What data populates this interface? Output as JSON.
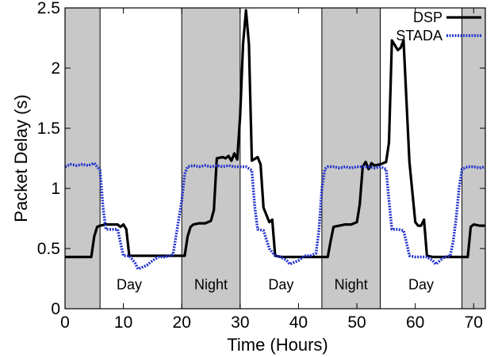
{
  "chart_data": {
    "type": "line",
    "xlabel": "Time (Hours)",
    "ylabel": "Packet Delay (s)",
    "xlim": [
      0,
      72
    ],
    "ylim": [
      0,
      2.5
    ],
    "xticks": [
      {
        "value": 0,
        "label": "0"
      },
      {
        "value": 10,
        "label": "10"
      },
      {
        "value": 20,
        "label": "20"
      },
      {
        "value": 30,
        "label": "30"
      },
      {
        "value": 40,
        "label": "40"
      },
      {
        "value": 50,
        "label": "50"
      },
      {
        "value": 60,
        "label": "60"
      },
      {
        "value": 70,
        "label": "70"
      }
    ],
    "yticks": [
      {
        "value": 0,
        "label": "0"
      },
      {
        "value": 0.5,
        "label": "0.5"
      },
      {
        "value": 1,
        "label": "1"
      },
      {
        "value": 1.5,
        "label": "1.5"
      },
      {
        "value": 2,
        "label": "2"
      },
      {
        "value": 2.5,
        "label": "2.5"
      }
    ],
    "grid": false,
    "legend_position": "top-right",
    "shaded_regions": [
      {
        "x0": 0,
        "x1": 6,
        "label": ""
      },
      {
        "x0": 20,
        "x1": 30,
        "label": "Night"
      },
      {
        "x0": 44,
        "x1": 54,
        "label": "Night"
      },
      {
        "x0": 68,
        "x1": 72,
        "label": ""
      }
    ],
    "region_labels": [
      {
        "x": 11,
        "y": 0.2,
        "text": "Day"
      },
      {
        "x": 25,
        "y": 0.2,
        "text": "Night"
      },
      {
        "x": 37,
        "y": 0.2,
        "text": "Day"
      },
      {
        "x": 49,
        "y": 0.2,
        "text": "Night"
      },
      {
        "x": 61,
        "y": 0.2,
        "text": "Day"
      }
    ],
    "series": [
      {
        "name": "DSP",
        "color": "#000000",
        "dash": "solid",
        "points": [
          [
            0,
            0.43
          ],
          [
            1,
            0.43
          ],
          [
            2,
            0.43
          ],
          [
            3,
            0.43
          ],
          [
            4,
            0.43
          ],
          [
            4.5,
            0.43
          ],
          [
            5,
            0.6
          ],
          [
            5.5,
            0.68
          ],
          [
            6,
            0.69
          ],
          [
            7,
            0.7
          ],
          [
            8,
            0.7
          ],
          [
            9,
            0.7
          ],
          [
            9.5,
            0.68
          ],
          [
            10,
            0.7
          ],
          [
            10.5,
            0.66
          ],
          [
            11,
            0.44
          ],
          [
            12,
            0.44
          ],
          [
            13,
            0.44
          ],
          [
            14,
            0.44
          ],
          [
            15,
            0.44
          ],
          [
            16,
            0.44
          ],
          [
            17,
            0.44
          ],
          [
            18,
            0.44
          ],
          [
            19,
            0.44
          ],
          [
            20,
            0.44
          ],
          [
            20.5,
            0.44
          ],
          [
            21,
            0.6
          ],
          [
            21.5,
            0.68
          ],
          [
            22,
            0.7
          ],
          [
            23,
            0.71
          ],
          [
            24,
            0.71
          ],
          [
            25,
            0.73
          ],
          [
            25.5,
            0.82
          ],
          [
            26,
            1.25
          ],
          [
            27,
            1.26
          ],
          [
            27.5,
            1.25
          ],
          [
            28,
            1.27
          ],
          [
            28.5,
            1.23
          ],
          [
            29,
            1.29
          ],
          [
            29.5,
            1.24
          ],
          [
            30,
            1.6
          ],
          [
            30.5,
            2.2
          ],
          [
            31,
            2.48
          ],
          [
            31.5,
            2.2
          ],
          [
            32,
            1.23
          ],
          [
            33,
            1.26
          ],
          [
            33.5,
            1.2
          ],
          [
            34,
            0.84
          ],
          [
            35,
            0.72
          ],
          [
            35.5,
            0.74
          ],
          [
            36,
            0.44
          ],
          [
            37,
            0.43
          ],
          [
            38,
            0.43
          ],
          [
            39,
            0.43
          ],
          [
            40,
            0.43
          ],
          [
            41,
            0.43
          ],
          [
            42,
            0.43
          ],
          [
            43,
            0.43
          ],
          [
            44,
            0.43
          ],
          [
            45,
            0.43
          ],
          [
            45.5,
            0.56
          ],
          [
            46,
            0.68
          ],
          [
            47,
            0.69
          ],
          [
            48,
            0.7
          ],
          [
            49,
            0.7
          ],
          [
            50,
            0.72
          ],
          [
            50.5,
            0.87
          ],
          [
            51,
            1.18
          ],
          [
            51.5,
            1.22
          ],
          [
            52,
            1.16
          ],
          [
            52.5,
            1.21
          ],
          [
            53,
            1.19
          ],
          [
            54,
            1.2
          ],
          [
            55,
            1.22
          ],
          [
            55.5,
            1.38
          ],
          [
            56,
            2.23
          ],
          [
            57,
            2.15
          ],
          [
            57.5,
            2.17
          ],
          [
            58,
            2.23
          ],
          [
            59,
            1.22
          ],
          [
            60,
            0.72
          ],
          [
            60.5,
            0.69
          ],
          [
            61,
            0.69
          ],
          [
            61.5,
            0.74
          ],
          [
            62,
            0.44
          ],
          [
            63,
            0.43
          ],
          [
            64,
            0.43
          ],
          [
            65,
            0.43
          ],
          [
            66,
            0.43
          ],
          [
            67,
            0.43
          ],
          [
            68,
            0.43
          ],
          [
            69,
            0.43
          ],
          [
            69.5,
            0.68
          ],
          [
            70,
            0.7
          ],
          [
            71,
            0.69
          ],
          [
            72,
            0.69
          ]
        ]
      },
      {
        "name": "STADA",
        "color": "#2233cc",
        "dash": "dotted",
        "points": [
          [
            0,
            1.18
          ],
          [
            1,
            1.2
          ],
          [
            2,
            1.19
          ],
          [
            3,
            1.2
          ],
          [
            4,
            1.19
          ],
          [
            5,
            1.21
          ],
          [
            5.5,
            1.18
          ],
          [
            6,
            1.15
          ],
          [
            6.5,
            0.85
          ],
          [
            7,
            0.66
          ],
          [
            8,
            0.66
          ],
          [
            9,
            0.66
          ],
          [
            9.5,
            0.55
          ],
          [
            10,
            0.44
          ],
          [
            11,
            0.44
          ],
          [
            12,
            0.38
          ],
          [
            12.5,
            0.33
          ],
          [
            13,
            0.34
          ],
          [
            14,
            0.36
          ],
          [
            15,
            0.4
          ],
          [
            16,
            0.43
          ],
          [
            17,
            0.43
          ],
          [
            18,
            0.44
          ],
          [
            18.5,
            0.45
          ],
          [
            19,
            0.6
          ],
          [
            20,
            0.9
          ],
          [
            20.5,
            1.12
          ],
          [
            21,
            1.18
          ],
          [
            22,
            1.19
          ],
          [
            23,
            1.18
          ],
          [
            24,
            1.19
          ],
          [
            25,
            1.18
          ],
          [
            26,
            1.19
          ],
          [
            27,
            1.18
          ],
          [
            28,
            1.19
          ],
          [
            29,
            1.18
          ],
          [
            30,
            1.18
          ],
          [
            31,
            1.18
          ],
          [
            32,
            1.15
          ],
          [
            32.5,
            0.85
          ],
          [
            33,
            0.66
          ],
          [
            34,
            0.65
          ],
          [
            35,
            0.5
          ],
          [
            36,
            0.44
          ],
          [
            37,
            0.43
          ],
          [
            38,
            0.4
          ],
          [
            38.5,
            0.37
          ],
          [
            39,
            0.38
          ],
          [
            40,
            0.4
          ],
          [
            41,
            0.44
          ],
          [
            42,
            0.44
          ],
          [
            43,
            0.46
          ],
          [
            43.5,
            0.65
          ],
          [
            44,
            1.0
          ],
          [
            44.5,
            1.16
          ],
          [
            45,
            1.18
          ],
          [
            46,
            1.18
          ],
          [
            47,
            1.17
          ],
          [
            48,
            1.18
          ],
          [
            49,
            1.17
          ],
          [
            50,
            1.18
          ],
          [
            51,
            1.18
          ],
          [
            52,
            1.18
          ],
          [
            53,
            1.17
          ],
          [
            54,
            1.18
          ],
          [
            55,
            1.16
          ],
          [
            55.5,
            0.9
          ],
          [
            56,
            0.66
          ],
          [
            57,
            0.66
          ],
          [
            58,
            0.65
          ],
          [
            58.5,
            0.55
          ],
          [
            59,
            0.44
          ],
          [
            60,
            0.43
          ],
          [
            61,
            0.43
          ],
          [
            62,
            0.43
          ],
          [
            63,
            0.4
          ],
          [
            63.5,
            0.37
          ],
          [
            64,
            0.39
          ],
          [
            65,
            0.43
          ],
          [
            66,
            0.44
          ],
          [
            66.5,
            0.56
          ],
          [
            67,
            0.75
          ],
          [
            67.5,
            1.0
          ],
          [
            68,
            1.16
          ],
          [
            69,
            1.18
          ],
          [
            70,
            1.18
          ],
          [
            71,
            1.17
          ],
          [
            72,
            1.18
          ]
        ]
      }
    ]
  }
}
